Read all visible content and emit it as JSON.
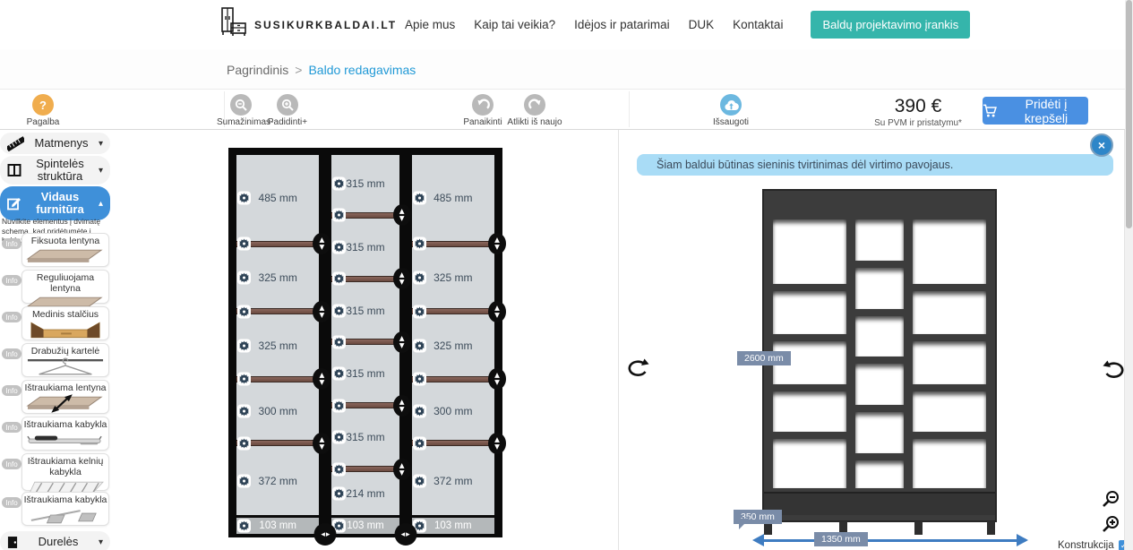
{
  "header": {
    "logo": "SUSIKURKBALDAI.LT",
    "nav": [
      "Apie mus",
      "Kaip tai veikia?",
      "Idėjos ir patarimai",
      "DUK",
      "Kontaktai"
    ],
    "cta_button": "Baldų projektavimo įrankis"
  },
  "breadcrumb": {
    "home": "Pagrindinis",
    "separator": ">",
    "current": "Baldo redagavimas"
  },
  "toolbar": {
    "help": "Pagalba",
    "zoom_out": "Sumažinimas-",
    "zoom_in": "Padidinti+",
    "undo": "Panaikinti",
    "redo": "Atlikti iš naujo",
    "save": "Išsaugoti",
    "price": "390 €",
    "price_note": "Su PVM ir pristatymu*",
    "add_to_cart": "Pridėti į krepšelį"
  },
  "sidebar": {
    "sections": [
      {
        "label": "Matmenys",
        "icon": "ruler-icon",
        "chevron": "down",
        "active": false
      },
      {
        "label": "Spintelės struktūra",
        "icon": "cabinet-structure-icon",
        "chevron": "down",
        "active": false
      },
      {
        "label": "Vidaus furnitūra",
        "icon": "edit-icon",
        "chevron": "up",
        "active": true
      }
    ],
    "hint": "Nuvilkite elementus į dvimatę schemą, kad pridėtumėte į baldą:",
    "info_badge": "Info",
    "items": [
      {
        "label": "Fiksuota lentyna",
        "icon": "fixed-shelf-icon"
      },
      {
        "label": "Reguliuojama lentyna",
        "icon": "adjustable-shelf-icon"
      },
      {
        "label": "Medinis stalčius",
        "icon": "wooden-drawer-icon"
      },
      {
        "label": "Drabužių kartelė",
        "icon": "hanger-rail-icon"
      },
      {
        "label": "Ištraukiama lentyna",
        "icon": "pullout-shelf-icon"
      },
      {
        "label": "Ištraukiama kabykla",
        "icon": "pullout-rail-icon"
      },
      {
        "label": "Ištraukiama kelnių kabykla",
        "icon": "trouser-rack-icon"
      },
      {
        "label": "Ištraukiama kabykla",
        "icon": "pullout-support-icon"
      }
    ],
    "footer_section": {
      "label": "Durelės",
      "icon": "door-icon",
      "chevron": "down"
    }
  },
  "schematic": {
    "unit": "mm",
    "columns": [
      {
        "width_mm": 485,
        "plinth_label": "103 mm",
        "sections": [
          {
            "label": "485 mm",
            "mm": 485
          },
          {
            "label": "325 mm",
            "mm": 325
          },
          {
            "label": "325 mm",
            "mm": 325
          },
          {
            "label": "300 mm",
            "mm": 300
          },
          {
            "label": "372 mm",
            "mm": 372
          }
        ]
      },
      {
        "width_mm": 315,
        "plinth_label": "103 mm",
        "sections": [
          {
            "label": "315 mm",
            "mm": 315
          },
          {
            "label": "315 mm",
            "mm": 315
          },
          {
            "label": "315 mm",
            "mm": 315
          },
          {
            "label": "315 mm",
            "mm": 315
          },
          {
            "label": "315 mm",
            "mm": 315
          },
          {
            "label": "214 mm",
            "mm": 214
          }
        ]
      },
      {
        "width_mm": 485,
        "plinth_label": "103 mm",
        "sections": [
          {
            "label": "485 mm",
            "mm": 485
          },
          {
            "label": "325 mm",
            "mm": 325
          },
          {
            "label": "325 mm",
            "mm": 325
          },
          {
            "label": "300 mm",
            "mm": 300
          },
          {
            "label": "372 mm",
            "mm": 372
          }
        ]
      }
    ]
  },
  "viewer": {
    "warning": "Šiam baldui būtinas sieninis tvirtinimas dėl virtimo pavojaus.",
    "height_label": "2600 mm",
    "depth_label": "350 mm",
    "width_label": "1350 mm",
    "construction_label": "Konstrukcija"
  },
  "colors": {
    "accent_blue": "#3F90D9",
    "teal": "#35B5AB",
    "cart_blue": "#4A90E2",
    "help_orange": "#F0AD4E",
    "save_blue": "#6CB8E0",
    "notification_bg": "#A9DCF6",
    "notification_close": "#2E86C8",
    "dim_chip": "#7A8CA8",
    "dim_arrow": "#3E7CC1",
    "shelf_brown": "#7B5A50",
    "panel_gray": "#D4D8DB",
    "breadcrumb_link": "#2199D6"
  }
}
